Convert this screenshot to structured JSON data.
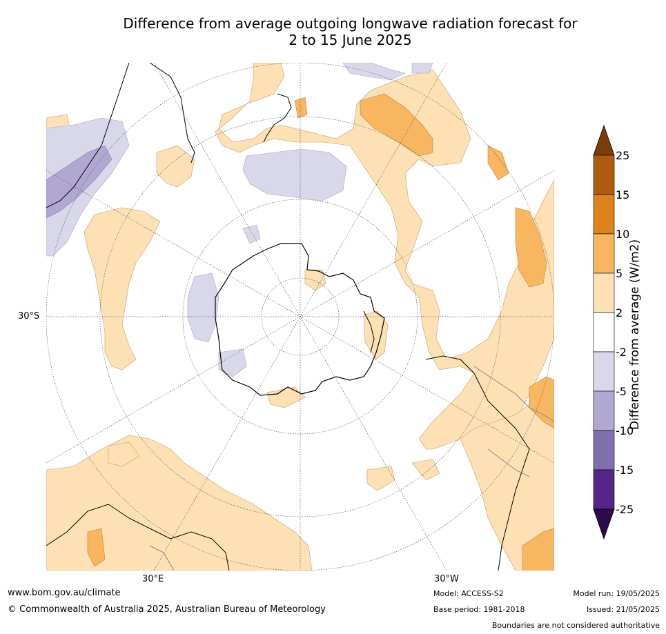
{
  "title_line1": "Difference from average outgoing longwave radiation forecast for",
  "title_line2": "2 to 15 June 2025",
  "axis": {
    "lat_30s": "30°S",
    "lon_30e": "30°E",
    "lon_30w": "30°W"
  },
  "colorbar": {
    "title": "Difference from average (W/m2)",
    "ticks": [
      "25",
      "15",
      "10",
      "5",
      "2",
      "-2",
      "-5",
      "-10",
      "-15",
      "-25"
    ],
    "colors": [
      "#7a3e0c",
      "#b05a0f",
      "#e0821c",
      "#f8b660",
      "#fde0b4",
      "#ffffff",
      "#d8d8ea",
      "#b1a8d2",
      "#7f70ad",
      "#552588",
      "#2e0a4a"
    ]
  },
  "footer": {
    "website": "www.bom.gov.au/climate",
    "copyright": "© Commonwealth of Australia 2025, Australian Bureau of Meteorology",
    "model": "Model: ACCESS-S2",
    "base_period": "Base period: 1981-2018",
    "model_run": "Model run: 19/05/2025",
    "issued": "Issued: 21/05/2025",
    "disclaimer": "Boundaries are not considered authoritative"
  }
}
